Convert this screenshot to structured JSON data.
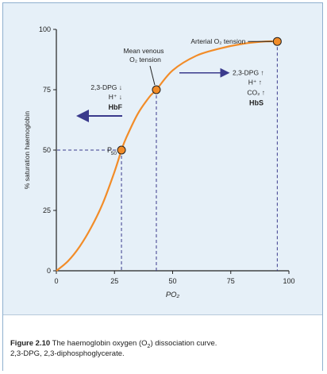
{
  "chart_data": {
    "type": "line",
    "x": [
      0,
      5,
      10,
      15,
      20,
      25,
      28,
      30,
      35,
      40,
      43,
      50,
      60,
      70,
      80,
      90,
      95
    ],
    "y": [
      0,
      4,
      10,
      18,
      28,
      41,
      50,
      55,
      65,
      72,
      75,
      83,
      89,
      92,
      94,
      95,
      95
    ],
    "xlabel": "PO₂",
    "ylabel": "% saturation haemoglobin",
    "xlim": [
      0,
      100
    ],
    "ylim": [
      0,
      100
    ],
    "xticks": [
      "0",
      "25",
      "50",
      "75",
      "100"
    ],
    "yticks": [
      "0",
      "25",
      "50",
      "75",
      "100"
    ],
    "xtick_values": [
      0,
      25,
      50,
      75,
      100
    ],
    "ytick_values": [
      0,
      25,
      50,
      75,
      100
    ],
    "line_color": "#f28c28",
    "points": [
      {
        "name": "p50",
        "x": 28,
        "y": 50
      },
      {
        "name": "mean-venous",
        "x": 43,
        "y": 75
      },
      {
        "name": "arterial",
        "x": 95,
        "y": 95
      }
    ],
    "marker_color": "#f28c28",
    "annotations": {
      "arterial": "Arterial O₂ tension",
      "mean_venous_1": "Mean venous",
      "mean_venous_2": "O₂ tension",
      "p50_label": "P",
      "p50_sub": "50",
      "left_1": "2,3-DPG ↓",
      "left_2": "H⁺ ↓",
      "left_3": "HbF",
      "right_1": "2,3-DPG ↑",
      "right_2": "H⁺ ↑",
      "right_3": "CO₂ ↑",
      "right_4": "HbS"
    },
    "arrow_color": "#3a3a8c"
  },
  "caption": {
    "label": "Figure 2.10",
    "text": "The haemoglobin oxygen (O",
    "sub": "2",
    "text2": ") dissociation curve.",
    "line2": "2,3-DPG, 2,3-diphosphoglycerate."
  }
}
